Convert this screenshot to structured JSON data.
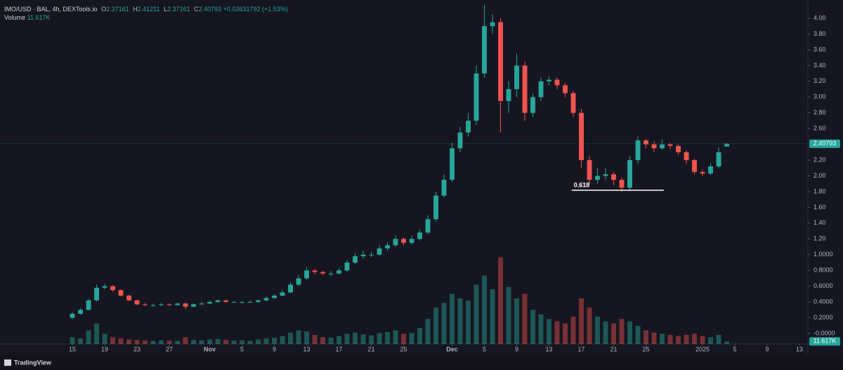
{
  "chart_data": {
    "type": "candlestick",
    "symbol": "IMO/USD · BAL, 4h, DEXTools.io",
    "o_key": "O",
    "h_key": "H",
    "l_key": "L",
    "c_key": "C",
    "change": "+0.03631792 (+1.53%)",
    "volume_title": "Volume",
    "volume_label": "11.617K",
    "brand": "TradingView",
    "up_color": "#26a69a",
    "down_color": "#ef5350",
    "grid": false,
    "x": [
      0,
      1,
      2,
      3,
      4,
      5,
      6,
      7,
      8,
      9,
      10,
      11,
      12,
      13,
      14,
      15,
      16,
      17,
      18,
      19,
      20,
      21,
      22,
      23,
      24,
      25,
      26,
      27,
      28,
      29,
      30,
      31,
      32,
      33,
      34,
      35,
      36,
      37,
      38,
      39,
      40,
      41,
      42,
      43,
      44,
      45,
      46,
      47,
      48,
      49,
      50,
      51,
      52,
      53,
      54,
      55,
      56,
      57,
      58,
      59,
      60,
      61,
      62,
      63,
      64,
      65,
      66,
      67,
      68,
      69,
      70,
      71,
      72,
      73,
      74,
      75,
      76,
      77,
      78,
      79,
      80,
      81
    ],
    "open": [
      0.2,
      0.25,
      0.3,
      0.42,
      0.58,
      0.6,
      0.55,
      0.48,
      0.42,
      0.37,
      0.36,
      0.36,
      0.37,
      0.36,
      0.38,
      0.34,
      0.37,
      0.38,
      0.4,
      0.42,
      0.4,
      0.4,
      0.4,
      0.4,
      0.42,
      0.45,
      0.48,
      0.52,
      0.62,
      0.7,
      0.8,
      0.78,
      0.76,
      0.76,
      0.8,
      0.9,
      0.98,
      1.0,
      1.0,
      1.08,
      1.12,
      1.2,
      1.15,
      1.2,
      1.28,
      1.45,
      1.75,
      1.95,
      2.35,
      2.55,
      2.7,
      3.3,
      3.9,
      3.95,
      2.95,
      3.1,
      3.4,
      2.8,
      3.0,
      3.2,
      3.22,
      3.15,
      3.05,
      2.8,
      2.2,
      1.95,
      2.0,
      2.02,
      1.95,
      1.85,
      2.2,
      2.45,
      2.4,
      2.35,
      2.4,
      2.38,
      2.3,
      2.2,
      2.05,
      2.03,
      2.12,
      2.37161
    ],
    "high": [
      0.27,
      0.32,
      0.44,
      0.62,
      0.63,
      0.61,
      0.56,
      0.49,
      0.43,
      0.39,
      0.38,
      0.39,
      0.38,
      0.39,
      0.39,
      0.38,
      0.4,
      0.42,
      0.43,
      0.43,
      0.41,
      0.41,
      0.42,
      0.43,
      0.47,
      0.5,
      0.55,
      0.65,
      0.74,
      0.84,
      0.82,
      0.8,
      0.79,
      0.83,
      0.93,
      1.02,
      1.05,
      1.04,
      1.12,
      1.16,
      1.24,
      1.22,
      1.24,
      1.32,
      1.5,
      1.8,
      2.02,
      2.42,
      2.62,
      2.8,
      3.4,
      4.17,
      4.05,
      4.0,
      3.2,
      3.55,
      3.45,
      3.05,
      3.25,
      3.26,
      3.25,
      3.18,
      3.08,
      2.85,
      2.25,
      2.1,
      2.1,
      2.05,
      1.98,
      2.25,
      2.5,
      2.47,
      2.44,
      2.46,
      2.42,
      2.4,
      2.32,
      2.22,
      2.08,
      2.16,
      2.36,
      2.41211
    ],
    "low": [
      0.18,
      0.24,
      0.29,
      0.41,
      0.56,
      0.53,
      0.47,
      0.41,
      0.36,
      0.35,
      0.34,
      0.35,
      0.35,
      0.35,
      0.31,
      0.33,
      0.36,
      0.37,
      0.39,
      0.39,
      0.39,
      0.38,
      0.39,
      0.39,
      0.41,
      0.44,
      0.47,
      0.51,
      0.6,
      0.68,
      0.75,
      0.74,
      0.73,
      0.75,
      0.78,
      0.88,
      0.95,
      0.97,
      0.98,
      1.05,
      1.1,
      1.12,
      1.13,
      1.18,
      1.26,
      1.42,
      1.72,
      1.92,
      2.3,
      2.5,
      2.65,
      3.25,
      3.8,
      2.55,
      2.8,
      3.0,
      2.7,
      2.75,
      2.95,
      3.15,
      3.1,
      3.0,
      2.75,
      2.1,
      1.9,
      1.9,
      1.95,
      1.88,
      1.8,
      1.82,
      2.15,
      2.35,
      2.3,
      2.33,
      2.34,
      2.27,
      2.15,
      2.02,
      2.0,
      2.01,
      2.1,
      2.37161
    ],
    "close": [
      0.25,
      0.3,
      0.42,
      0.58,
      0.6,
      0.55,
      0.48,
      0.42,
      0.37,
      0.36,
      0.36,
      0.37,
      0.36,
      0.38,
      0.34,
      0.37,
      0.38,
      0.4,
      0.42,
      0.4,
      0.4,
      0.4,
      0.4,
      0.42,
      0.45,
      0.48,
      0.52,
      0.62,
      0.7,
      0.8,
      0.78,
      0.76,
      0.76,
      0.8,
      0.9,
      0.98,
      1.0,
      1.0,
      1.08,
      1.12,
      1.2,
      1.15,
      1.2,
      1.28,
      1.45,
      1.75,
      1.95,
      2.35,
      2.55,
      2.7,
      3.3,
      3.9,
      3.95,
      2.95,
      3.1,
      3.4,
      2.8,
      3.0,
      3.2,
      3.22,
      3.15,
      3.05,
      2.8,
      2.2,
      1.95,
      2.0,
      2.02,
      1.95,
      1.85,
      2.2,
      2.45,
      2.4,
      2.35,
      2.4,
      2.38,
      2.3,
      2.2,
      2.05,
      2.03,
      2.12,
      2.3,
      2.40793
    ],
    "volume": [
      30000,
      25000,
      60000,
      90000,
      45000,
      30000,
      25000,
      20000,
      18000,
      15000,
      14000,
      16000,
      15000,
      14000,
      30000,
      18000,
      16000,
      20000,
      22000,
      18000,
      15000,
      16000,
      14000,
      20000,
      25000,
      28000,
      35000,
      50000,
      60000,
      55000,
      40000,
      30000,
      28000,
      35000,
      45000,
      50000,
      42000,
      38000,
      48000,
      52000,
      60000,
      45000,
      48000,
      70000,
      110000,
      160000,
      180000,
      220000,
      200000,
      190000,
      260000,
      300000,
      240000,
      380000,
      250000,
      200000,
      220000,
      150000,
      130000,
      110000,
      100000,
      90000,
      120000,
      200000,
      160000,
      120000,
      100000,
      90000,
      110000,
      100000,
      80000,
      60000,
      50000,
      45000,
      40000,
      35000,
      40000,
      45000,
      35000,
      30000,
      40000,
      11617
    ],
    "xlim": [
      -8.96,
      91.04
    ],
    "xticks": [
      {
        "value": 0,
        "label": "15"
      },
      {
        "value": 4,
        "label": "19"
      },
      {
        "value": 8,
        "label": "23"
      },
      {
        "value": 12,
        "label": "27"
      },
      {
        "value": 17,
        "label": "Nov"
      },
      {
        "value": 21,
        "label": "5"
      },
      {
        "value": 25,
        "label": "9"
      },
      {
        "value": 29,
        "label": "13"
      },
      {
        "value": 33,
        "label": "17"
      },
      {
        "value": 37,
        "label": "21"
      },
      {
        "value": 41,
        "label": "25"
      },
      {
        "value": 47,
        "label": "Dec"
      },
      {
        "value": 51,
        "label": "5"
      },
      {
        "value": 55,
        "label": "9"
      },
      {
        "value": 59,
        "label": "13"
      },
      {
        "value": 63,
        "label": "17"
      },
      {
        "value": 67,
        "label": "21"
      },
      {
        "value": 71,
        "label": "25"
      },
      {
        "value": 78,
        "label": "2025"
      },
      {
        "value": 82,
        "label": "5"
      },
      {
        "value": 86,
        "label": "9"
      },
      {
        "value": 90,
        "label": "13"
      }
    ],
    "ylim": [
      -0.134,
      4.232
    ],
    "yticks": [
      {
        "value": 4.0,
        "label": "4.00"
      },
      {
        "value": 3.8,
        "label": "3.80"
      },
      {
        "value": 3.6,
        "label": "3.60"
      },
      {
        "value": 3.4,
        "label": "3.40"
      },
      {
        "value": 3.2,
        "label": "3.20"
      },
      {
        "value": 3.0,
        "label": "3.00"
      },
      {
        "value": 2.8,
        "label": "2.80"
      },
      {
        "value": 2.6,
        "label": "2.60"
      },
      {
        "value": 2.2,
        "label": "2.20"
      },
      {
        "value": 2.0,
        "label": "2.00"
      },
      {
        "value": 1.8,
        "label": "1.80"
      },
      {
        "value": 1.6,
        "label": "1.60"
      },
      {
        "value": 1.4,
        "label": "1.40"
      },
      {
        "value": 1.2,
        "label": "1.20"
      },
      {
        "value": 1.0,
        "label": "1.0000"
      },
      {
        "value": 0.8,
        "label": "0.8000"
      },
      {
        "value": 0.6,
        "label": "0.6000"
      },
      {
        "value": 0.4,
        "label": "0.4000"
      },
      {
        "value": 0.2,
        "label": "0.2000"
      },
      {
        "value": 0,
        "label": "-0.0000"
      }
    ],
    "volume_ylim": [
      0,
      400000
    ],
    "annotations": [
      {
        "label": "0.618",
        "value": 1.817,
        "x": [
          61.8,
          73.2
        ]
      }
    ]
  }
}
